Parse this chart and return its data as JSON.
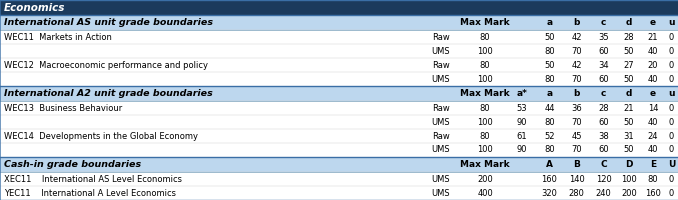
{
  "title": "Economics",
  "title_bg": "#1B3A5C",
  "subheader_bg": "#BDD7EE",
  "row_bg": "#FFFFFF",
  "sections": [
    {
      "header": "International AS unit grade boundaries",
      "has_astar": false,
      "grade_labels": [
        "a",
        "b",
        "c",
        "d",
        "e",
        "u"
      ],
      "rows": [
        {
          "name": "WEC11  Markets in Action",
          "type": "Raw",
          "max": "80",
          "astar": "",
          "grades": [
            "50",
            "42",
            "35",
            "28",
            "21",
            "0"
          ]
        },
        {
          "name": "",
          "type": "UMS",
          "max": "100",
          "astar": "",
          "grades": [
            "80",
            "70",
            "60",
            "50",
            "40",
            "0"
          ]
        },
        {
          "name": "WEC12  Macroeconomic performance and policy",
          "type": "Raw",
          "max": "80",
          "astar": "",
          "grades": [
            "50",
            "42",
            "34",
            "27",
            "20",
            "0"
          ]
        },
        {
          "name": "",
          "type": "UMS",
          "max": "100",
          "astar": "",
          "grades": [
            "80",
            "70",
            "60",
            "50",
            "40",
            "0"
          ]
        }
      ]
    },
    {
      "header": "International A2 unit grade boundaries",
      "has_astar": true,
      "grade_labels": [
        "a*",
        "a",
        "b",
        "c",
        "d",
        "e",
        "u"
      ],
      "rows": [
        {
          "name": "WEC13  Business Behaviour",
          "type": "Raw",
          "max": "80",
          "astar": "53",
          "grades": [
            "44",
            "36",
            "28",
            "21",
            "14",
            "0"
          ]
        },
        {
          "name": "",
          "type": "UMS",
          "max": "100",
          "astar": "90",
          "grades": [
            "80",
            "70",
            "60",
            "50",
            "40",
            "0"
          ]
        },
        {
          "name": "WEC14  Developments in the Global Economy",
          "type": "Raw",
          "max": "80",
          "astar": "61",
          "grades": [
            "52",
            "45",
            "38",
            "31",
            "24",
            "0"
          ]
        },
        {
          "name": "",
          "type": "UMS",
          "max": "100",
          "astar": "90",
          "grades": [
            "80",
            "70",
            "60",
            "50",
            "40",
            "0"
          ]
        }
      ]
    },
    {
      "header": "Cash-in grade boundaries",
      "has_astar": false,
      "grade_labels": [
        "A",
        "B",
        "C",
        "D",
        "E",
        "U"
      ],
      "rows": [
        {
          "name": "XEC11    International AS Level Economics",
          "type": "UMS",
          "max": "200",
          "astar": "",
          "grades": [
            "160",
            "140",
            "120",
            "100",
            "80",
            "0"
          ]
        },
        {
          "name": "YEC11    International A Level Economics",
          "type": "UMS",
          "max": "400",
          "astar": "",
          "grades": [
            "320",
            "280",
            "240",
            "200",
            "160",
            "0"
          ]
        }
      ]
    }
  ]
}
